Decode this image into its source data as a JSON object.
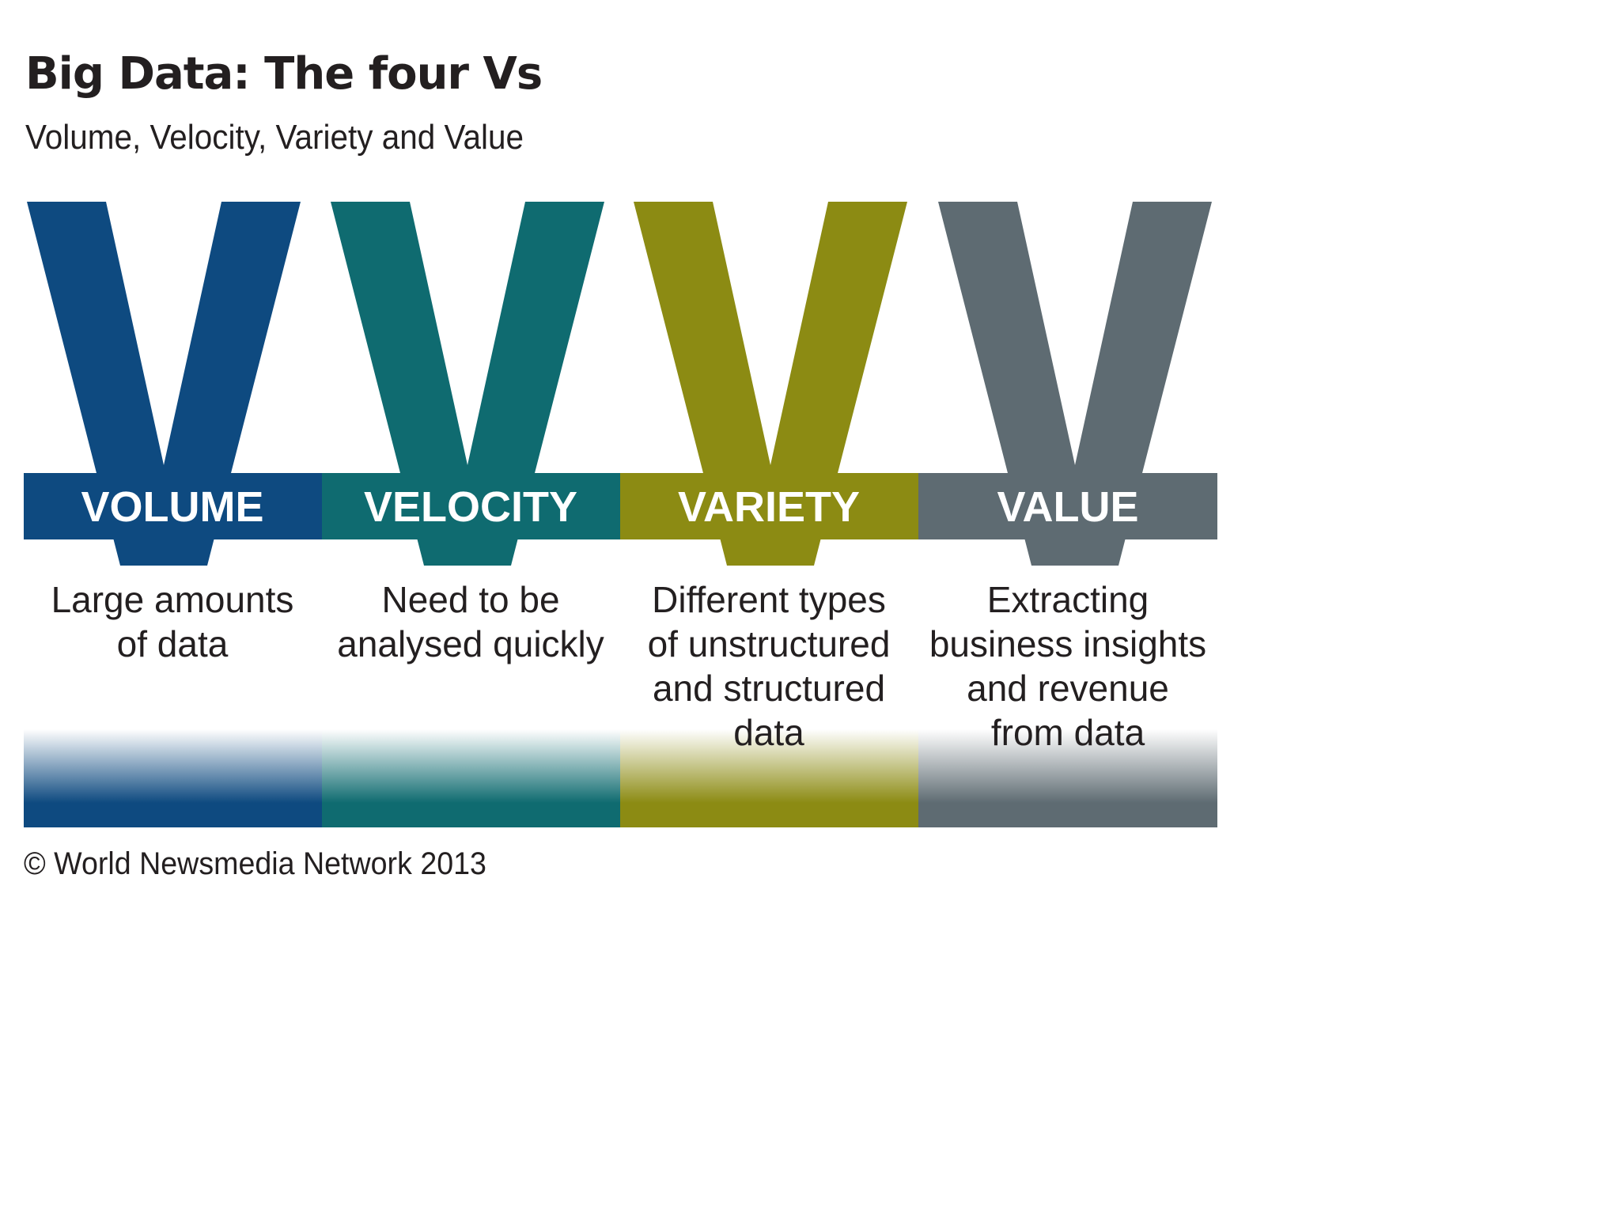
{
  "header": {
    "title": "Big Data: The four Vs",
    "subtitle": "Volume, Velocity, Variety and Value"
  },
  "vs": [
    {
      "label": "VOLUME",
      "color": "#0e4a80",
      "description_lines": [
        "Large amounts",
        "of data"
      ]
    },
    {
      "label": "VELOCITY",
      "color": "#0f6b70",
      "description_lines": [
        "Need to be",
        "analysed quickly"
      ]
    },
    {
      "label": "VARIETY",
      "color": "#8c8b13",
      "description_lines": [
        "Different types",
        "of unstructured",
        "and structured",
        "data"
      ]
    },
    {
      "label": "VALUE",
      "color": "#5e6b72",
      "description_lines": [
        "Extracting",
        "business insights",
        "and revenue",
        "from data"
      ]
    }
  ],
  "footer": {
    "copyright": "© World Newsmedia Network 2013"
  }
}
